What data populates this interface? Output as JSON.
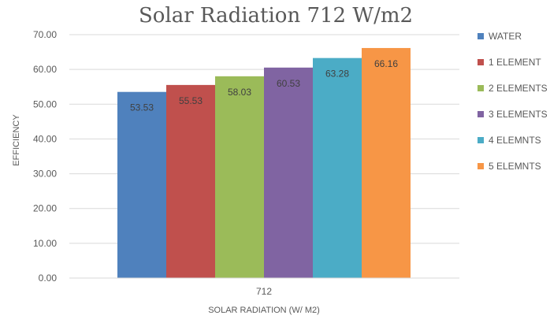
{
  "chart_data": {
    "type": "bar",
    "title": "Solar Radiation 712 W/m2",
    "xlabel": "SOLAR RADIATION (W/ M2)",
    "ylabel": "EFFICIENCY",
    "categories": [
      "712"
    ],
    "ylim": [
      0,
      70
    ],
    "yticks": [
      "0.00",
      "10.00",
      "20.00",
      "30.00",
      "40.00",
      "50.00",
      "60.00",
      "70.00"
    ],
    "grid": true,
    "legend_position": "right",
    "series": [
      {
        "name": "WATER",
        "values": [
          53.53
        ],
        "label": "53.53",
        "color": "#4f81bd"
      },
      {
        "name": "1 ELEMENT",
        "values": [
          55.53
        ],
        "label": "55.53",
        "color": "#c0504d"
      },
      {
        "name": "2 ELEMENTS",
        "values": [
          58.03
        ],
        "label": "58.03",
        "color": "#9bbb59"
      },
      {
        "name": "3 ELEMENTS",
        "values": [
          60.53
        ],
        "label": "60.53",
        "color": "#8064a2"
      },
      {
        "name": "4 ELEMNTS",
        "values": [
          63.28
        ],
        "label": "63.28",
        "color": "#4bacc6"
      },
      {
        "name": "5 ELEMNTS",
        "values": [
          66.16
        ],
        "label": "66.16",
        "color": "#f79646"
      }
    ]
  }
}
